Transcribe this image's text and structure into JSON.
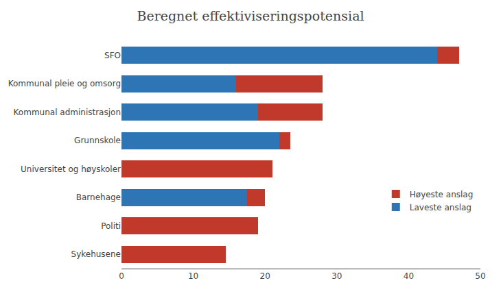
{
  "chart_data": {
    "type": "bar",
    "orientation": "horizontal",
    "stacked": true,
    "title": "Beregnet effektiviseringspotensial",
    "categories": [
      "Sykehusene",
      "Politi",
      "Barnehage",
      "Universitet og høyskoler",
      "Grunnskole",
      "Kommunal administrasjon",
      "Kommunal pleie og omsorg",
      "SFO"
    ],
    "series": [
      {
        "name": "Laveste anslag",
        "color": "#2E75B6",
        "values": [
          0,
          0,
          17.5,
          0,
          22,
          19,
          16,
          44
        ]
      },
      {
        "name": "Høyeste anslag",
        "color": "#C0392B",
        "values": [
          14.5,
          19,
          2.5,
          21,
          1.5,
          9,
          12,
          3
        ]
      }
    ],
    "xlim": [
      0,
      50
    ],
    "xticks": [
      0,
      10,
      20,
      30,
      40,
      50
    ],
    "grid": false,
    "legend": "right"
  }
}
